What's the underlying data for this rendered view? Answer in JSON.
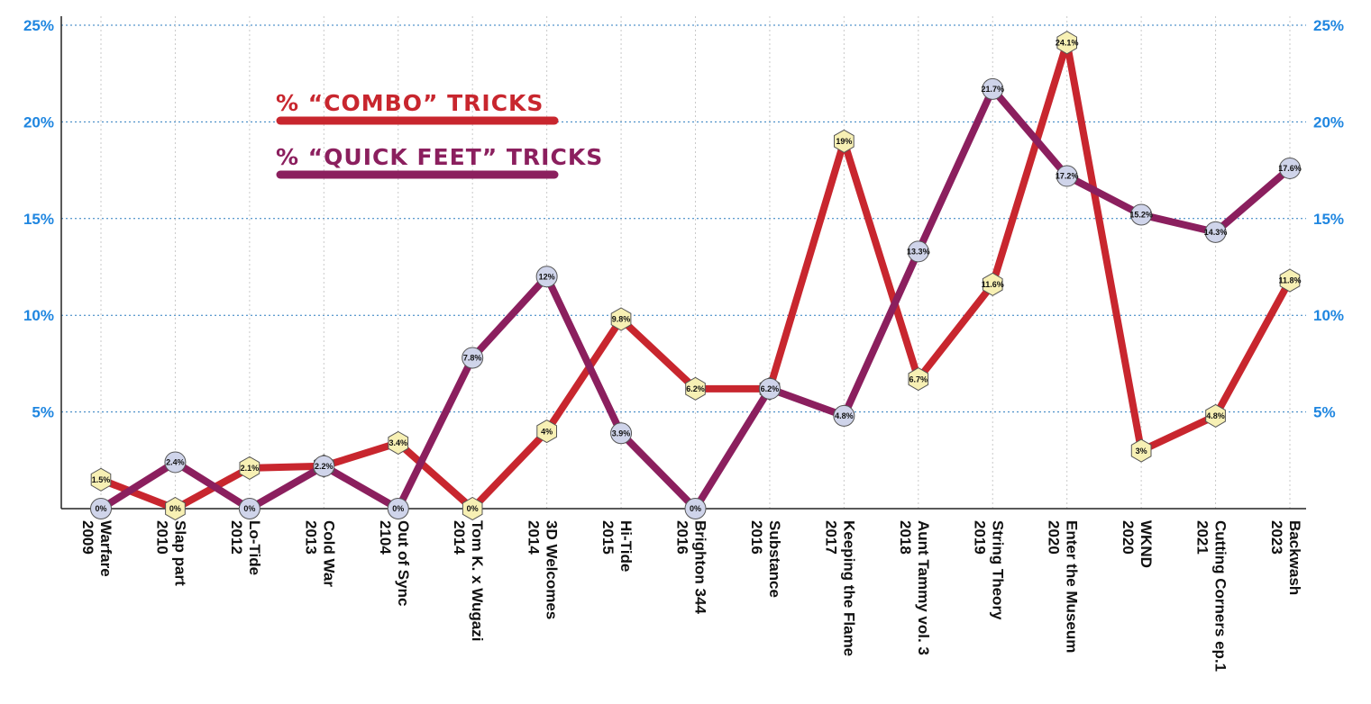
{
  "chart_data": {
    "type": "line",
    "categories": [
      {
        "name": "Warfare",
        "year": "2009"
      },
      {
        "name": "Slap part",
        "year": "2010"
      },
      {
        "name": "Lo-Tide",
        "year": "2012"
      },
      {
        "name": "Cold War",
        "year": "2013"
      },
      {
        "name": "Out of Sync",
        "year": "2104"
      },
      {
        "name": "Tom K. x Wugazi",
        "year": "2014"
      },
      {
        "name": "3D Welcomes",
        "year": "2014"
      },
      {
        "name": "Hi-Tide",
        "year": "2015"
      },
      {
        "name": "Brighton 344",
        "year": "2016"
      },
      {
        "name": "Substance",
        "year": "2016"
      },
      {
        "name": "Keeping the Flame",
        "year": "2017"
      },
      {
        "name": "Aunt Tammy vol. 3",
        "year": "2018"
      },
      {
        "name": "String Theory",
        "year": "2019"
      },
      {
        "name": "Enter the Museum",
        "year": "2020"
      },
      {
        "name": "WKND",
        "year": "2020"
      },
      {
        "name": "Cutting Corners ep.1",
        "year": "2021"
      },
      {
        "name": "Backwash",
        "year": "2023"
      }
    ],
    "series": [
      {
        "name": "% “COMBO” TRICKS",
        "color": "#c8262e",
        "marker": "hexagon",
        "marker_color": "#f7f0b4",
        "values": [
          1.5,
          0,
          2.1,
          2.2,
          3.4,
          0,
          4,
          9.8,
          6.2,
          6.2,
          19,
          6.7,
          11.6,
          24.1,
          3,
          4.8,
          11.8
        ],
        "labels": [
          "1.5%",
          "0%",
          "2.1%",
          "2.2%",
          "3.4%",
          "0%",
          "4%",
          "9.8%",
          "6.2%",
          "6.2%",
          "19%",
          "6.7%",
          "11.6%",
          "24.1%",
          "3%",
          "4.8%",
          "11.8%"
        ]
      },
      {
        "name": "% “QUICK FEET” TRICKS",
        "color": "#8b1f5e",
        "marker": "circle",
        "marker_color": "#cfd4ea",
        "values": [
          0,
          2.4,
          0,
          2.2,
          0,
          7.8,
          12,
          3.9,
          0,
          6.2,
          4.8,
          13.3,
          21.7,
          17.2,
          15.2,
          14.3,
          17.6
        ],
        "labels": [
          "0%",
          "2.4%",
          "0%",
          "2.2%",
          "0%",
          "7.8%",
          "12%",
          "3.9%",
          "0%",
          "6.2%",
          "4.8%",
          "13.3%",
          "21.7%",
          "17.2%",
          "15.2%",
          "14.3%",
          "17.6%"
        ]
      }
    ],
    "y_ticks": [
      "5%",
      "10%",
      "15%",
      "20%",
      "25%"
    ],
    "y_tick_values": [
      5,
      10,
      15,
      20,
      25
    ],
    "ylim": [
      0,
      25
    ],
    "grid": true,
    "axis_tick_color": "#1f86e0",
    "grid_color": "#2a7bbf",
    "legend_placement": "top-left"
  }
}
